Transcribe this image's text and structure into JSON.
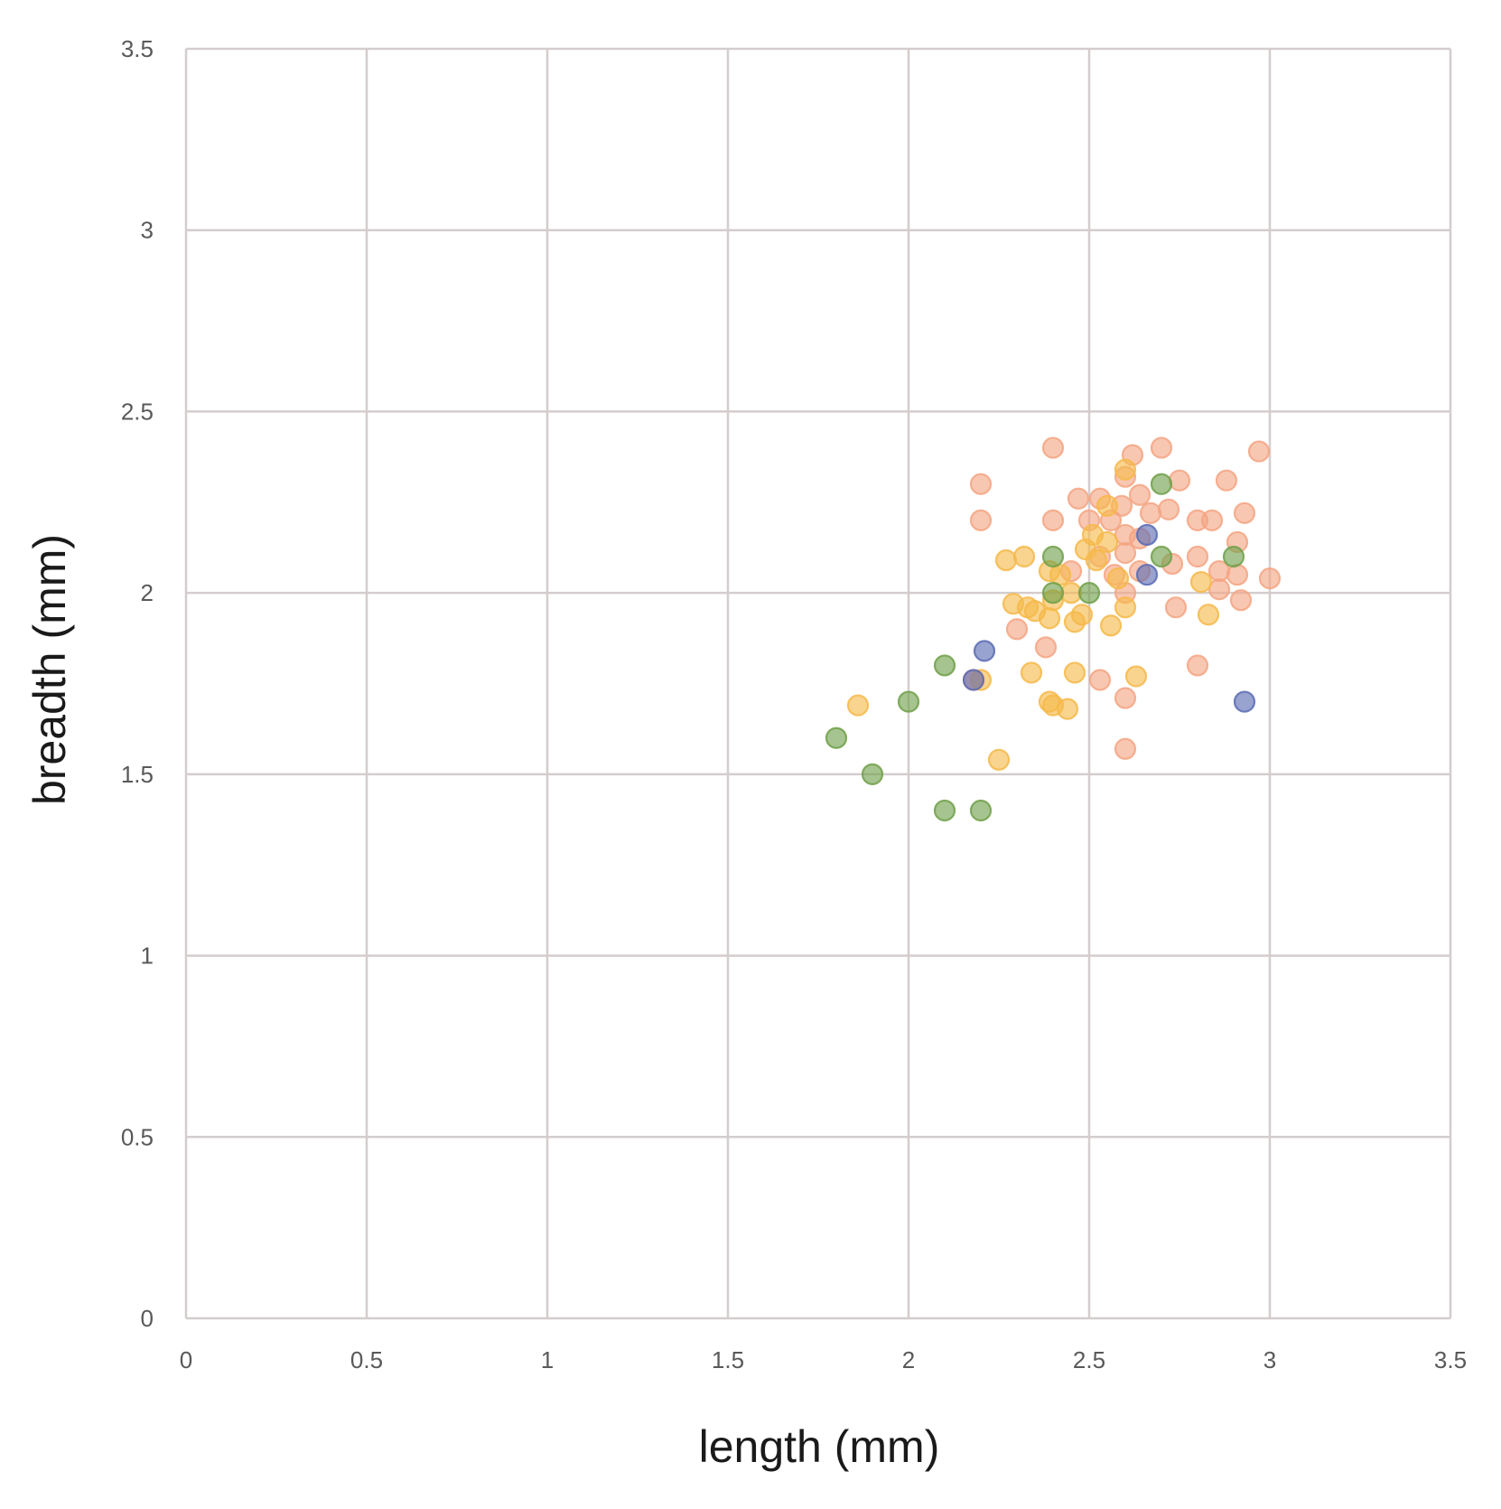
{
  "chart_data": {
    "type": "scatter",
    "title": "",
    "xlabel": "length (mm)",
    "ylabel": "breadth (mm)",
    "xlim": [
      0,
      3.5
    ],
    "ylim": [
      0,
      3.5
    ],
    "xticks": [
      "0",
      "0.5",
      "1",
      "1.5",
      "2",
      "2.5",
      "3",
      "3.5"
    ],
    "yticks": [
      "0",
      "0.5",
      "1",
      "1.5",
      "2",
      "2.5",
      "3",
      "3.5"
    ],
    "grid": true,
    "legend": "none",
    "series": [
      {
        "color": "#f4a582",
        "points": [
          [
            2.4,
            2.4
          ],
          [
            2.62,
            2.38
          ],
          [
            2.7,
            2.4
          ],
          [
            2.97,
            2.39
          ],
          [
            2.2,
            2.3
          ],
          [
            2.6,
            2.32
          ],
          [
            2.75,
            2.31
          ],
          [
            2.88,
            2.31
          ],
          [
            2.47,
            2.26
          ],
          [
            2.53,
            2.26
          ],
          [
            2.64,
            2.27
          ],
          [
            2.59,
            2.24
          ],
          [
            2.72,
            2.23
          ],
          [
            2.93,
            2.22
          ],
          [
            2.2,
            2.2
          ],
          [
            2.4,
            2.2
          ],
          [
            2.5,
            2.2
          ],
          [
            2.56,
            2.2
          ],
          [
            2.67,
            2.22
          ],
          [
            2.8,
            2.2
          ],
          [
            2.84,
            2.2
          ],
          [
            2.6,
            2.16
          ],
          [
            2.91,
            2.14
          ],
          [
            2.53,
            2.1
          ],
          [
            2.6,
            2.11
          ],
          [
            2.73,
            2.08
          ],
          [
            2.8,
            2.1
          ],
          [
            2.64,
            2.06
          ],
          [
            2.86,
            2.06
          ],
          [
            2.91,
            2.05
          ],
          [
            3.0,
            2.04
          ],
          [
            2.45,
            2.06
          ],
          [
            2.57,
            2.05
          ],
          [
            2.6,
            2.0
          ],
          [
            2.86,
            2.01
          ],
          [
            2.92,
            1.98
          ],
          [
            2.74,
            1.96
          ],
          [
            2.3,
            1.9
          ],
          [
            2.38,
            1.85
          ],
          [
            2.8,
            1.8
          ],
          [
            2.53,
            1.76
          ],
          [
            2.6,
            1.71
          ],
          [
            2.6,
            1.57
          ],
          [
            2.18,
            1.76
          ],
          [
            2.64,
            2.15
          ]
        ]
      },
      {
        "color": "#f6b94a",
        "points": [
          [
            2.6,
            2.34
          ],
          [
            2.51,
            2.16
          ],
          [
            2.55,
            2.14
          ],
          [
            2.49,
            2.12
          ],
          [
            2.52,
            2.09
          ],
          [
            2.27,
            2.09
          ],
          [
            2.32,
            2.1
          ],
          [
            2.39,
            2.06
          ],
          [
            2.42,
            2.05
          ],
          [
            2.45,
            2.0
          ],
          [
            2.4,
            1.98
          ],
          [
            2.29,
            1.97
          ],
          [
            2.33,
            1.96
          ],
          [
            2.35,
            1.95
          ],
          [
            2.39,
            1.93
          ],
          [
            2.46,
            1.92
          ],
          [
            2.48,
            1.94
          ],
          [
            2.56,
            1.91
          ],
          [
            2.6,
            1.96
          ],
          [
            2.83,
            1.94
          ],
          [
            2.81,
            2.03
          ],
          [
            2.58,
            2.04
          ],
          [
            2.34,
            1.78
          ],
          [
            2.46,
            1.78
          ],
          [
            2.63,
            1.77
          ],
          [
            2.2,
            1.76
          ],
          [
            2.39,
            1.7
          ],
          [
            2.4,
            1.69
          ],
          [
            2.44,
            1.68
          ],
          [
            1.86,
            1.69
          ],
          [
            2.25,
            1.54
          ],
          [
            2.55,
            2.24
          ]
        ]
      },
      {
        "color": "#70a04a",
        "points": [
          [
            2.7,
            2.3
          ],
          [
            2.4,
            2.1
          ],
          [
            2.7,
            2.1
          ],
          [
            2.9,
            2.1
          ],
          [
            2.4,
            2.0
          ],
          [
            2.5,
            2.0
          ],
          [
            2.1,
            1.8
          ],
          [
            2.0,
            1.7
          ],
          [
            1.8,
            1.6
          ],
          [
            1.9,
            1.5
          ],
          [
            2.1,
            1.4
          ],
          [
            2.2,
            1.4
          ]
        ]
      },
      {
        "color": "#5b6bb3",
        "points": [
          [
            2.21,
            1.84
          ],
          [
            2.66,
            2.05
          ],
          [
            2.66,
            2.16
          ],
          [
            2.93,
            1.7
          ],
          [
            2.18,
            1.76
          ]
        ]
      }
    ]
  }
}
